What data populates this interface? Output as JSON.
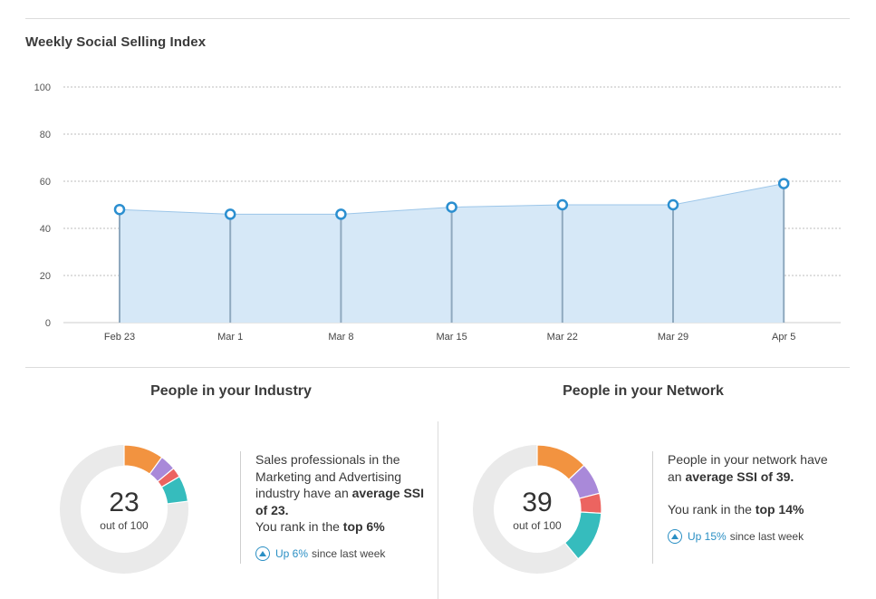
{
  "page": {
    "title": "Weekly Social Selling Index"
  },
  "chart_data": {
    "type": "area",
    "title": "Weekly Social Selling Index",
    "xlabel": "",
    "ylabel": "",
    "categories": [
      "Feb 23",
      "Mar 1",
      "Mar 8",
      "Mar 15",
      "Mar 22",
      "Mar 29",
      "Apr 5"
    ],
    "values": [
      48,
      46,
      46,
      49,
      50,
      50,
      59
    ],
    "ylim": [
      0,
      100
    ],
    "yticks": [
      0,
      20,
      40,
      60,
      80,
      100
    ],
    "grid": true,
    "colors": {
      "fill": "#d6e8f7",
      "line": "#9cc6e9",
      "marker": "#2b8fd0",
      "drop": "#8fa9bf"
    }
  },
  "industry": {
    "heading": "People in your Industry",
    "score": "23",
    "score_sub": "out of 100",
    "text_1": "Sales professionals in the Marketing and Advertising industry have an",
    "text_bold": "average SSI of 23.",
    "rank_pre": "You rank in the",
    "rank_bold": "top 6%",
    "trend_pct": "Up 6%",
    "trend_rest": "since last week",
    "segments": [
      {
        "value": 10,
        "color": "#f29340"
      },
      {
        "value": 4,
        "color": "#a989d9"
      },
      {
        "value": 2.5,
        "color": "#ec6460"
      },
      {
        "value": 6.5,
        "color": "#36bcbd"
      }
    ]
  },
  "network": {
    "heading": "People in your Network",
    "score": "39",
    "score_sub": "out of 100",
    "text_1": "People in your network have an",
    "text_bold": "average SSI of 39.",
    "rank_pre": "You rank in the",
    "rank_bold": "top 14%",
    "trend_pct": "Up 15%",
    "trend_rest": "since last week",
    "segments": [
      {
        "value": 13,
        "color": "#f29340"
      },
      {
        "value": 8,
        "color": "#a989d9"
      },
      {
        "value": 5,
        "color": "#ec6460"
      },
      {
        "value": 13,
        "color": "#36bcbd"
      }
    ]
  },
  "donut_track_color": "#eaeaea"
}
